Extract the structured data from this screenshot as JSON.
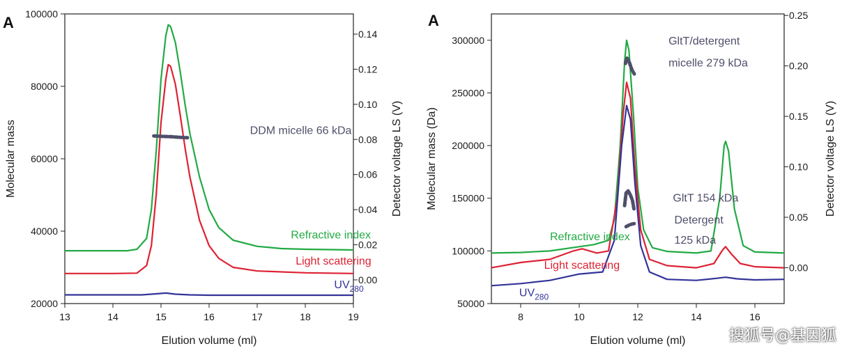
{
  "watermark": "搜狐号@基因狐",
  "colors": {
    "green": "#22aa44",
    "red": "#dd2233",
    "blue": "#333399",
    "gray": "#4f4f6b"
  },
  "chart_data": [
    {
      "type": "line",
      "panel_label": "A",
      "xlabel": "Elution volume (ml)",
      "ylabel": "Molecular mass",
      "y2label": "Detector voltage LS (V)",
      "xlim": [
        13,
        19
      ],
      "ylim": [
        20000,
        100000
      ],
      "y2lim": [
        -0.0135,
        0.1515
      ],
      "xticks": [
        13,
        14,
        15,
        16,
        17,
        18,
        19
      ],
      "yticks": [
        20000,
        40000,
        60000,
        80000,
        100000
      ],
      "y2ticks": [
        "0.00",
        "0.02",
        "0.04",
        "0.06",
        "0.08",
        "0.10",
        "0.12",
        "0.14"
      ],
      "series": [
        {
          "name": "Refractive index",
          "color_key": "green",
          "points": [
            [
              13,
              34600
            ],
            [
              14,
              34600
            ],
            [
              14.3,
              34600
            ],
            [
              14.5,
              35000
            ],
            [
              14.7,
              38000
            ],
            [
              14.8,
              46000
            ],
            [
              14.9,
              62000
            ],
            [
              15.0,
              82000
            ],
            [
              15.1,
              94000
            ],
            [
              15.15,
              97000
            ],
            [
              15.2,
              96500
            ],
            [
              15.3,
              92000
            ],
            [
              15.4,
              84000
            ],
            [
              15.5,
              75000
            ],
            [
              15.6,
              67000
            ],
            [
              15.8,
              55000
            ],
            [
              16.0,
              46000
            ],
            [
              16.2,
              41000
            ],
            [
              16.5,
              37500
            ],
            [
              17,
              35800
            ],
            [
              17.5,
              35200
            ],
            [
              18,
              35000
            ],
            [
              19,
              34800
            ]
          ]
        },
        {
          "name": "Light scattering",
          "color_key": "red",
          "points": [
            [
              13,
              28300
            ],
            [
              14,
              28300
            ],
            [
              14.5,
              28400
            ],
            [
              14.7,
              30500
            ],
            [
              14.8,
              36000
            ],
            [
              14.9,
              50000
            ],
            [
              15.0,
              70000
            ],
            [
              15.1,
              82000
            ],
            [
              15.15,
              86000
            ],
            [
              15.2,
              85500
            ],
            [
              15.3,
              80500
            ],
            [
              15.4,
              72000
            ],
            [
              15.5,
              63000
            ],
            [
              15.6,
              55000
            ],
            [
              15.8,
              43000
            ],
            [
              16.0,
              36000
            ],
            [
              16.2,
              32500
            ],
            [
              16.5,
              30000
            ],
            [
              17,
              29000
            ],
            [
              18,
              28500
            ],
            [
              19,
              28300
            ]
          ]
        },
        {
          "name": "UV280",
          "color_key": "blue",
          "points": [
            [
              13,
              22400
            ],
            [
              14,
              22400
            ],
            [
              14.6,
              22400
            ],
            [
              14.9,
              22700
            ],
            [
              15.1,
              22900
            ],
            [
              15.3,
              22600
            ],
            [
              15.6,
              22400
            ],
            [
              16,
              22300
            ],
            [
              19,
              22300
            ]
          ]
        },
        {
          "name": "DDM micelle 66 kDa",
          "color_key": "gray",
          "style": "mass",
          "points": [
            [
              14.85,
              66300
            ],
            [
              15.0,
              66200
            ],
            [
              15.2,
              66100
            ],
            [
              15.4,
              65900
            ],
            [
              15.55,
              65800
            ]
          ]
        }
      ],
      "annotations": [
        {
          "text": "Refractive index",
          "x": 17.7,
          "y": 38000,
          "color_key": "green"
        },
        {
          "text": "Light scattering",
          "x": 17.8,
          "y": 30800,
          "color_key": "red"
        },
        {
          "text": "UV",
          "sub": "280",
          "x": 18.6,
          "y": 24200,
          "color_key": "blue"
        },
        {
          "text": "DDM micelle 66 kDa",
          "x": 16.85,
          "y": 66800,
          "color_key": "gray"
        }
      ]
    },
    {
      "type": "line",
      "panel_label": "A",
      "xlabel": "Elution volume (ml)",
      "ylabel": "Molecular mass (Da)",
      "y2label": "Detector voltage LS (V)",
      "xlim": [
        7,
        17
      ],
      "ylim": [
        50000,
        325000
      ],
      "y2lim": [
        -0.0355,
        0.2515
      ],
      "xticks": [
        8,
        10,
        12,
        14,
        16
      ],
      "yticks": [
        50000,
        100000,
        150000,
        200000,
        250000,
        300000
      ],
      "y2ticks": [
        "0.00",
        "0.05",
        "0.10",
        "0.15",
        "0.20",
        "0.25"
      ],
      "series": [
        {
          "name": "Refractive index",
          "color_key": "green",
          "points": [
            [
              7,
              98000
            ],
            [
              8,
              98500
            ],
            [
              9,
              100000
            ],
            [
              10,
              104000
            ],
            [
              10.5,
              106000
            ],
            [
              11,
              110000
            ],
            [
              11.2,
              130000
            ],
            [
              11.4,
              200000
            ],
            [
              11.55,
              280000
            ],
            [
              11.62,
              300000
            ],
            [
              11.7,
              290000
            ],
            [
              11.85,
              230000
            ],
            [
              12.0,
              160000
            ],
            [
              12.2,
              120000
            ],
            [
              12.5,
              103000
            ],
            [
              13,
              99500
            ],
            [
              14,
              98000
            ],
            [
              14.5,
              100000
            ],
            [
              14.8,
              150000
            ],
            [
              14.95,
              200000
            ],
            [
              15.0,
              204000
            ],
            [
              15.1,
              195000
            ],
            [
              15.3,
              140000
            ],
            [
              15.6,
              105000
            ],
            [
              16,
              99000
            ],
            [
              17,
              98000
            ]
          ]
        },
        {
          "name": "Light scattering",
          "color_key": "red",
          "points": [
            [
              7,
              84000
            ],
            [
              8,
              89000
            ],
            [
              9,
              92000
            ],
            [
              9.8,
              100000
            ],
            [
              10.1,
              102000
            ],
            [
              10.6,
              98000
            ],
            [
              11,
              100000
            ],
            [
              11.3,
              150000
            ],
            [
              11.5,
              230000
            ],
            [
              11.62,
              260000
            ],
            [
              11.75,
              245000
            ],
            [
              11.9,
              180000
            ],
            [
              12.1,
              120000
            ],
            [
              12.4,
              92000
            ],
            [
              13,
              86000
            ],
            [
              14,
              84000
            ],
            [
              14.6,
              88000
            ],
            [
              14.9,
              101000
            ],
            [
              15.0,
              104000
            ],
            [
              15.2,
              97000
            ],
            [
              15.5,
              88000
            ],
            [
              16,
              85000
            ],
            [
              17,
              84000
            ]
          ]
        },
        {
          "name": "UV280",
          "color_key": "blue",
          "points": [
            [
              7,
              67000
            ],
            [
              8,
              69000
            ],
            [
              9,
              72000
            ],
            [
              10,
              78000
            ],
            [
              10.8,
              80000
            ],
            [
              11.2,
              110000
            ],
            [
              11.45,
              200000
            ],
            [
              11.62,
              238000
            ],
            [
              11.75,
              225000
            ],
            [
              11.9,
              165000
            ],
            [
              12.1,
              105000
            ],
            [
              12.4,
              80000
            ],
            [
              13,
              73000
            ],
            [
              14,
              72000
            ],
            [
              14.7,
              74000
            ],
            [
              15.0,
              75000
            ],
            [
              15.4,
              73500
            ],
            [
              16,
              72500
            ],
            [
              17,
              73000
            ]
          ]
        },
        {
          "name": "GltT/detergent micelle 279 kDa",
          "color_key": "gray",
          "style": "mass",
          "points": [
            [
              11.58,
              278000
            ],
            [
              11.63,
              283000
            ],
            [
              11.7,
              280000
            ],
            [
              11.8,
              272000
            ],
            [
              11.88,
              268000
            ]
          ]
        },
        {
          "name": "GltT 154 kDa",
          "color_key": "gray",
          "style": "mass",
          "points": [
            [
              11.55,
              143000
            ],
            [
              11.6,
              155000
            ],
            [
              11.67,
              157000
            ],
            [
              11.75,
              153000
            ],
            [
              11.82,
              148000
            ],
            [
              11.87,
              140000
            ]
          ]
        },
        {
          "name": "Detergent 125 kDa",
          "color_key": "gray",
          "style": "mass",
          "points": [
            [
              11.6,
              123000
            ],
            [
              11.7,
              124500
            ],
            [
              11.8,
              125500
            ],
            [
              11.9,
              126000
            ]
          ]
        }
      ],
      "annotations": [
        {
          "text": "GltT/detergent",
          "x": 13.05,
          "y": 296000,
          "color_key": "gray"
        },
        {
          "text": "micelle 279 kDa",
          "x": 13.05,
          "y": 275000,
          "color_key": "gray"
        },
        {
          "text": "GltT 154 kDa",
          "x": 13.2,
          "y": 147000,
          "color_key": "gray"
        },
        {
          "text": "Detergent",
          "x": 13.25,
          "y": 126000,
          "color_key": "gray"
        },
        {
          "text": "125 kDa",
          "x": 13.25,
          "y": 107000,
          "color_key": "gray"
        },
        {
          "text": "Refractive index",
          "x": 9.0,
          "y": 110000,
          "color_key": "green"
        },
        {
          "text": "Light scattering",
          "x": 8.8,
          "y": 83000,
          "color_key": "red"
        },
        {
          "text": "UV",
          "sub": "280",
          "x": 7.95,
          "y": 57000,
          "color_key": "blue"
        }
      ]
    }
  ]
}
